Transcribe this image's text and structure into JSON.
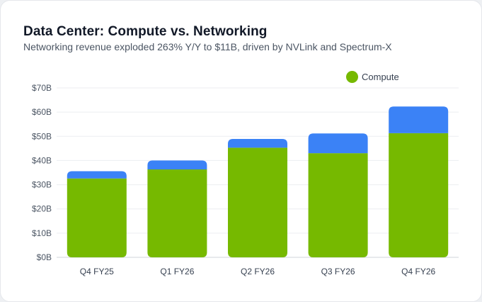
{
  "chart_data": {
    "type": "bar",
    "stacked": true,
    "title": "Data Center: Compute vs. Networking",
    "subtitle": "Networking revenue exploded 263% Y/Y to $11B, driven by NVLink and Spectrum-X",
    "categories": [
      "Q4 FY25",
      "Q1 FY26",
      "Q2 FY26",
      "Q3 FY26",
      "Q4 FY26"
    ],
    "series": [
      {
        "name": "Compute",
        "color": "#76b900",
        "values": [
          32.6,
          36.3,
          45.3,
          43.0,
          51.3
        ]
      },
      {
        "color": "#3b82f6",
        "values": [
          3.0,
          3.7,
          3.6,
          8.2,
          11.0
        ]
      }
    ],
    "ylim": [
      0,
      70
    ],
    "yticks": [
      0,
      10,
      20,
      30,
      40,
      50,
      60,
      70
    ],
    "ytick_labels": [
      "$0B",
      "$10B",
      "$20B",
      "$30B",
      "$40B",
      "$50B",
      "$60B",
      "$70B"
    ],
    "grid": true,
    "legend_position": "top-right",
    "legend": [
      {
        "label": "Compute",
        "color": "#76b900"
      }
    ]
  }
}
